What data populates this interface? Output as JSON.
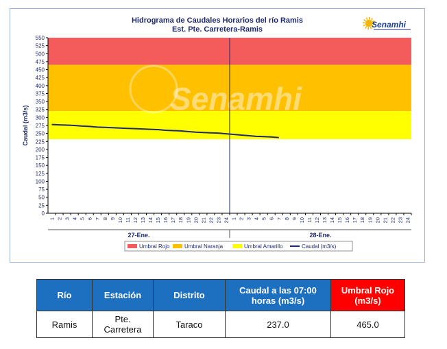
{
  "chart_data": {
    "type": "line",
    "title": "Hidrograma de Caudales Horarios del río Ramis",
    "subtitle": "Est. Pte. Carretera-Ramis",
    "ylabel": "Caudal  (m3/s)",
    "ylim": [
      0,
      550
    ],
    "yticks": [
      0,
      25,
      50,
      75,
      100,
      125,
      150,
      175,
      200,
      225,
      250,
      275,
      300,
      325,
      350,
      375,
      400,
      425,
      450,
      475,
      500,
      525,
      550
    ],
    "xticks": [
      "1",
      "2",
      "3",
      "4",
      "5",
      "6",
      "7",
      "8",
      "9",
      "10",
      "11",
      "12",
      "13",
      "14",
      "15",
      "16",
      "17",
      "18",
      "19",
      "20",
      "21",
      "22",
      "23",
      "24",
      "1",
      "2",
      "3",
      "4",
      "5",
      "6",
      "7",
      "8",
      "9",
      "10",
      "11",
      "12",
      "13",
      "14",
      "15",
      "16",
      "17",
      "18",
      "19",
      "20",
      "21",
      "22",
      "23",
      "24"
    ],
    "day_labels": [
      "27-Ene.",
      "28-Ene."
    ],
    "bands": [
      {
        "name": "Umbral Rojo",
        "from": 465,
        "to": 550,
        "color": "#f45b5b"
      },
      {
        "name": "Umbral Naranja",
        "from": 320,
        "to": 465,
        "color": "#ffc000"
      },
      {
        "name": "Umbral Amarillo",
        "from": 232,
        "to": 320,
        "color": "#ffff00"
      }
    ],
    "series": [
      {
        "name": "Caudal (m3/s)",
        "color": "#1f2a6e",
        "x": [
          1,
          2,
          3,
          4,
          5,
          6,
          7,
          8,
          9,
          10,
          11,
          12,
          13,
          14,
          15,
          16,
          17,
          18,
          19,
          20,
          21,
          22,
          23,
          24,
          25,
          26,
          27,
          28,
          29,
          30,
          31
        ],
        "values": [
          278,
          277,
          276,
          275,
          273,
          272,
          270,
          269,
          268,
          267,
          266,
          265,
          264,
          263,
          262,
          260,
          259,
          258,
          256,
          254,
          253,
          252,
          251,
          249,
          247,
          245,
          243,
          241,
          240,
          239,
          237
        ]
      }
    ],
    "legend": [
      "Umbral Rojo",
      "Umbral Naranja",
      "Umbral Amarillo",
      "Caudal (m3/s)"
    ],
    "legend_position": "bottom",
    "watermark": "Senamhi"
  },
  "logo_text": "Senamhi",
  "table": {
    "headers": [
      "Río",
      "Estación",
      "Distrito",
      "Caudal a las 07:00 horas (m3/s)",
      "Umbral Rojo (m3/s)"
    ],
    "row": [
      "Ramis",
      "Pte. Carretera",
      "Taraco",
      "237.0",
      "465.0"
    ]
  }
}
